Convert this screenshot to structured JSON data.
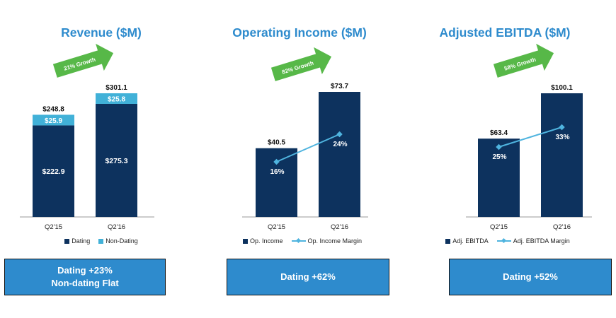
{
  "colors": {
    "dark": "#0d325e",
    "light": "#41b1d8",
    "title": "#2e8bcd",
    "line": "#4fb4df",
    "arrow": "#57b848"
  },
  "panels": [
    {
      "title": "Revenue ($M)",
      "growth": "21% Growth",
      "callout": [
        "Dating +23%",
        "Non-dating Flat"
      ],
      "legend": [
        {
          "label": "Dating",
          "kind": "box",
          "color": "#0d325e"
        },
        {
          "label": "Non-Dating",
          "kind": "box",
          "color": "#41b1d8"
        }
      ]
    },
    {
      "title": "Operating Income ($M)",
      "growth": "82% Growth",
      "callout": [
        "Dating +62%"
      ],
      "legend": [
        {
          "label": "Op. Income",
          "kind": "box",
          "color": "#0d325e"
        },
        {
          "label": "Op. Income Margin",
          "kind": "line",
          "color": "#4fb4df"
        }
      ]
    },
    {
      "title": "Adjusted EBITDA ($M)",
      "growth": "58% Growth",
      "callout": [
        "Dating +52%"
      ],
      "legend": [
        {
          "label": "Adj. EBITDA",
          "kind": "box",
          "color": "#0d325e"
        },
        {
          "label": "Adj. EBITDA Margin",
          "kind": "line",
          "color": "#4fb4df"
        }
      ]
    }
  ],
  "chart_data": [
    {
      "type": "bar",
      "stacked": true,
      "title": "Revenue ($M)",
      "categories": [
        "Q2'15",
        "Q2'16"
      ],
      "series": [
        {
          "name": "Dating",
          "values": [
            222.9,
            275.3
          ],
          "labels": [
            "$222.9",
            "$275.3"
          ]
        },
        {
          "name": "Non-Dating",
          "values": [
            25.9,
            25.8
          ],
          "labels": [
            "$25.9",
            "$25.8"
          ]
        }
      ],
      "totals": [
        248.8,
        301.1
      ],
      "total_labels": [
        "$248.8",
        "$301.1"
      ],
      "ylim": [
        0,
        301.1
      ]
    },
    {
      "type": "bar",
      "title": "Operating Income ($M)",
      "categories": [
        "Q2'15",
        "Q2'16"
      ],
      "series": [
        {
          "name": "Op. Income",
          "values": [
            40.5,
            73.7
          ],
          "labels": [
            "$40.5",
            "$73.7"
          ]
        }
      ],
      "line": {
        "name": "Op. Income Margin",
        "values": [
          16,
          24
        ],
        "labels": [
          "16%",
          "24%"
        ]
      },
      "ylim": [
        0,
        73.7
      ]
    },
    {
      "type": "bar",
      "title": "Adjusted EBITDA ($M)",
      "categories": [
        "Q2'15",
        "Q2'16"
      ],
      "series": [
        {
          "name": "Adj. EBITDA",
          "values": [
            63.4,
            100.1
          ],
          "labels": [
            "$63.4",
            "$100.1"
          ]
        }
      ],
      "line": {
        "name": "Adj. EBITDA Margin",
        "values": [
          25,
          33
        ],
        "labels": [
          "25%",
          "33%"
        ]
      },
      "ylim": [
        0,
        100.1
      ]
    }
  ]
}
